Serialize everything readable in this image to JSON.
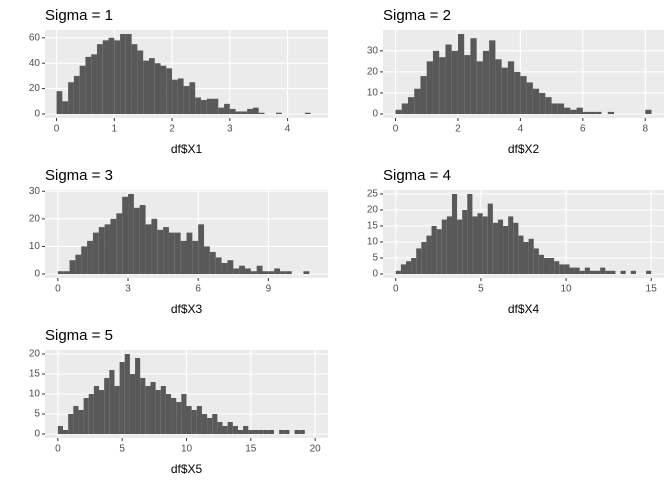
{
  "chart_data": [
    {
      "type": "histogram",
      "title": "Sigma = 1",
      "x_label": "df$X1",
      "color": "#595959",
      "grid": true,
      "bins": [
        0,
        0.1,
        0.2,
        0.3,
        0.4,
        0.5,
        0.6,
        0.7,
        0.8,
        0.9,
        1,
        1.1,
        1.2,
        1.3,
        1.4,
        1.5,
        1.6,
        1.7,
        1.8,
        1.9,
        2,
        2.1,
        2.2,
        2.3,
        2.4,
        2.5,
        2.6,
        2.7,
        2.8,
        2.9,
        3,
        3.1,
        3.2,
        3.3,
        3.4,
        3.5,
        3.6,
        3.7,
        3.8,
        3.9,
        4,
        4.1,
        4.2,
        4.3,
        4.4,
        4.5
      ],
      "values": [
        18,
        10,
        25,
        30,
        38,
        45,
        47,
        55,
        58,
        60,
        58,
        63,
        63,
        55,
        50,
        42,
        44,
        40,
        38,
        36,
        27,
        28,
        22,
        25,
        13,
        11,
        12,
        12,
        5,
        8,
        4,
        2,
        2,
        4,
        5,
        1,
        0,
        0,
        1,
        0,
        0,
        0,
        0,
        1,
        0
      ],
      "xlim": [
        -0.2,
        4.7
      ],
      "xticks": [
        0,
        1,
        2,
        3,
        4
      ],
      "ylim": [
        -3.15,
        66.15
      ],
      "yticks": [
        0,
        20,
        40,
        60
      ]
    },
    {
      "type": "histogram",
      "title": "Sigma = 2",
      "x_label": "df$X2",
      "color": "#595959",
      "grid": true,
      "bins": [
        0,
        0.2,
        0.4,
        0.6,
        0.8,
        1,
        1.2,
        1.4,
        1.6,
        1.8,
        2,
        2.2,
        2.4,
        2.6,
        2.8,
        3,
        3.2,
        3.4,
        3.6,
        3.8,
        4,
        4.2,
        4.4,
        4.6,
        4.8,
        5,
        5.2,
        5.4,
        5.6,
        5.8,
        6,
        6.2,
        6.4,
        6.6,
        6.8,
        7,
        7.2,
        7.4,
        7.6,
        7.8,
        8,
        8.2,
        8.4
      ],
      "values": [
        2,
        5,
        8,
        12,
        18,
        25,
        30,
        27,
        33,
        30,
        38,
        28,
        36,
        25,
        30,
        35,
        26,
        22,
        25,
        20,
        18,
        15,
        12,
        10,
        8,
        5,
        5,
        3,
        2,
        3,
        1,
        1,
        1,
        0,
        1,
        0,
        0,
        0,
        0,
        0,
        2,
        0
      ],
      "xlim": [
        -0.4,
        8.6
      ],
      "xticks": [
        0,
        2,
        4,
        6,
        8
      ],
      "ylim": [
        -1.9,
        39.9
      ],
      "yticks": [
        0,
        10,
        20,
        30
      ]
    },
    {
      "type": "histogram",
      "title": "Sigma = 3",
      "x_label": "df$X3",
      "color": "#595959",
      "grid": true,
      "bins": [
        0,
        0.25,
        0.5,
        0.75,
        1,
        1.25,
        1.5,
        1.75,
        2,
        2.25,
        2.5,
        2.75,
        3,
        3.25,
        3.5,
        3.75,
        4,
        4.25,
        4.5,
        4.75,
        5,
        5.25,
        5.5,
        5.75,
        6,
        6.25,
        6.5,
        6.75,
        7,
        7.25,
        7.5,
        7.75,
        8,
        8.25,
        8.5,
        8.75,
        9,
        9.25,
        9.5,
        9.75,
        10,
        10.25,
        10.5,
        10.75,
        11
      ],
      "values": [
        1,
        1,
        5,
        7,
        10,
        12,
        15,
        17,
        18,
        20,
        22,
        28,
        29,
        24,
        25,
        18,
        20,
        16,
        17,
        15,
        15,
        12,
        15,
        12,
        18,
        10,
        8,
        6,
        4,
        5,
        2,
        3,
        2,
        1,
        3,
        1,
        1,
        2,
        1,
        1,
        0,
        0,
        1,
        0
      ],
      "xlim": [
        -0.55,
        11.55
      ],
      "xticks": [
        0,
        3,
        6,
        9
      ],
      "ylim": [
        -1.45,
        30.45
      ],
      "yticks": [
        0,
        10,
        20,
        30
      ]
    },
    {
      "type": "histogram",
      "title": "Sigma = 4",
      "x_label": "df$X4",
      "color": "#595959",
      "grid": true,
      "bins": [
        0,
        0.3,
        0.6,
        0.9,
        1.2,
        1.5,
        1.8,
        2.1,
        2.4,
        2.7,
        3,
        3.3,
        3.6,
        3.9,
        4.2,
        4.5,
        4.8,
        5.1,
        5.4,
        5.7,
        6,
        6.3,
        6.6,
        6.9,
        7.2,
        7.5,
        7.8,
        8.1,
        8.4,
        8.7,
        9,
        9.3,
        9.6,
        9.9,
        10.2,
        10.5,
        10.8,
        11.1,
        11.4,
        11.7,
        12,
        12.3,
        12.6,
        12.9,
        13.2,
        13.5,
        13.8,
        14.1,
        14.4,
        14.7,
        15
      ],
      "values": [
        1,
        3,
        4,
        5,
        8,
        10,
        12,
        15,
        14,
        17,
        18,
        25,
        17,
        20,
        25,
        18,
        19,
        18,
        22,
        16,
        17,
        15,
        18,
        16,
        12,
        10,
        11,
        8,
        6,
        5,
        5,
        4,
        3,
        3,
        2,
        2,
        1,
        2,
        1,
        1,
        2,
        1,
        1,
        0,
        1,
        0,
        1,
        0,
        0,
        1
      ],
      "xlim": [
        -0.75,
        15.75
      ],
      "xticks": [
        0,
        5,
        10,
        15
      ],
      "ylim": [
        -1.25,
        26.25
      ],
      "yticks": [
        0,
        5,
        10,
        15,
        20,
        25
      ]
    },
    {
      "type": "histogram",
      "title": "Sigma = 5",
      "x_label": "df$X5",
      "color": "#595959",
      "grid": true,
      "bins": [
        0,
        0.4,
        0.8,
        1.2,
        1.6,
        2,
        2.4,
        2.8,
        3.2,
        3.6,
        4,
        4.4,
        4.8,
        5.2,
        5.6,
        6,
        6.4,
        6.8,
        7.2,
        7.6,
        8,
        8.4,
        8.8,
        9.2,
        9.6,
        10,
        10.4,
        10.8,
        11.2,
        11.6,
        12,
        12.4,
        12.8,
        13.2,
        13.6,
        14,
        14.4,
        14.8,
        15.2,
        15.6,
        16,
        16.4,
        16.8,
        17.2,
        17.6,
        18,
        18.4,
        18.8,
        19.2,
        19.6,
        20
      ],
      "values": [
        2,
        1,
        5,
        7,
        6,
        9,
        10,
        12,
        11,
        14,
        16,
        12,
        18,
        20,
        15,
        19,
        14,
        12,
        13,
        11,
        12,
        10,
        9,
        8,
        10,
        7,
        6,
        7,
        5,
        4,
        5,
        3,
        2,
        3,
        2,
        1,
        2,
        1,
        1,
        1,
        1,
        1,
        0,
        1,
        1,
        0,
        1,
        1,
        0,
        0
      ],
      "xlim": [
        -1,
        21
      ],
      "xticks": [
        0,
        5,
        10,
        15,
        20
      ],
      "ylim": [
        -1,
        21
      ],
      "yticks": [
        0,
        5,
        10,
        15,
        20
      ]
    }
  ]
}
